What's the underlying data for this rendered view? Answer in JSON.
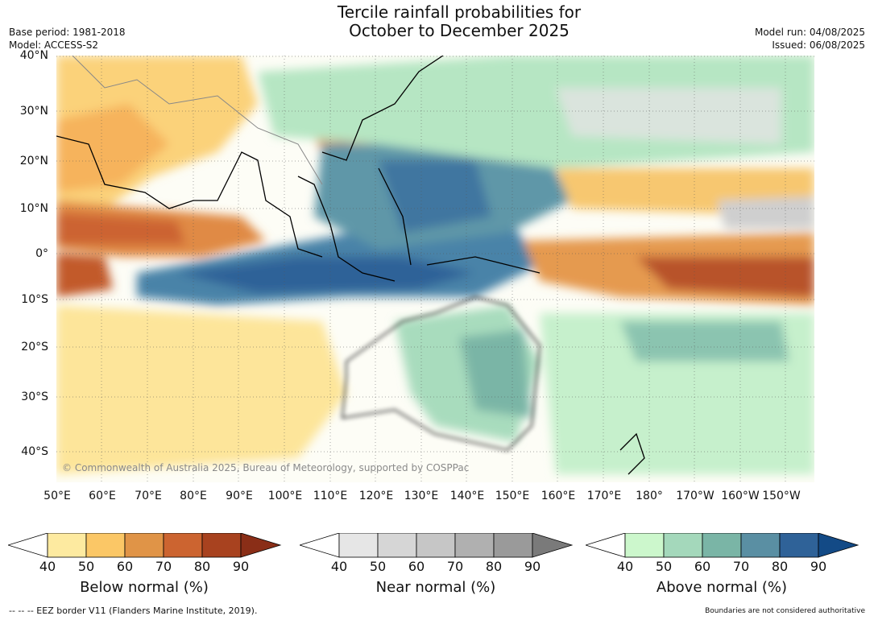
{
  "title_line1": "Tercile rainfall probabilities for",
  "title_line2": "October to December 2025",
  "base_period": "Base period: 1981-2018",
  "model": "Model: ACCESS-S2",
  "model_run": "Model run: 04/08/2025",
  "issued": "Issued: 06/08/2025",
  "copyright": "© Commonwealth of Australia 2025, Bureau of Meteorology, supported by COSPPac",
  "lat_labels": [
    "40°N",
    "30°N",
    "20°N",
    "10°N",
    "0°",
    "10°S",
    "20°S",
    "30°S",
    "40°S"
  ],
  "lon_labels": [
    "50°E",
    "60°E",
    "70°E",
    "80°E",
    "90°E",
    "100°E",
    "110°E",
    "120°E",
    "130°E",
    "140°E",
    "150°E",
    "160°E",
    "170°E",
    "180°",
    "170°W",
    "160°W",
    "150°W"
  ],
  "colorbars": [
    {
      "title": "Below normal (%)",
      "ticks": [
        "40",
        "50",
        "60",
        "70",
        "80",
        "90"
      ],
      "colors": [
        "#ffffff",
        "#fdeaa0",
        "#fbc766",
        "#e09447",
        "#cc6430",
        "#a8421f",
        "#8a2e17"
      ]
    },
    {
      "title": "Near normal (%)",
      "ticks": [
        "40",
        "50",
        "60",
        "70",
        "80",
        "90"
      ],
      "colors": [
        "#ffffff",
        "#e6e6e6",
        "#d6d6d6",
        "#c6c6c6",
        "#b0b0b0",
        "#9a9a9a",
        "#7a7a7a"
      ]
    },
    {
      "title": "Above normal (%)",
      "ticks": [
        "40",
        "50",
        "60",
        "70",
        "80",
        "90"
      ],
      "colors": [
        "#ffffff",
        "#ccf7cc",
        "#a4d8bb",
        "#7ab5a6",
        "#5a8fa3",
        "#2f6298",
        "#134a86"
      ]
    }
  ],
  "footer_left": "--  --  -- EEZ border V11 (Flanders Marine Institute, 2019).",
  "footer_right": "Boundaries are not considered authoritative"
}
